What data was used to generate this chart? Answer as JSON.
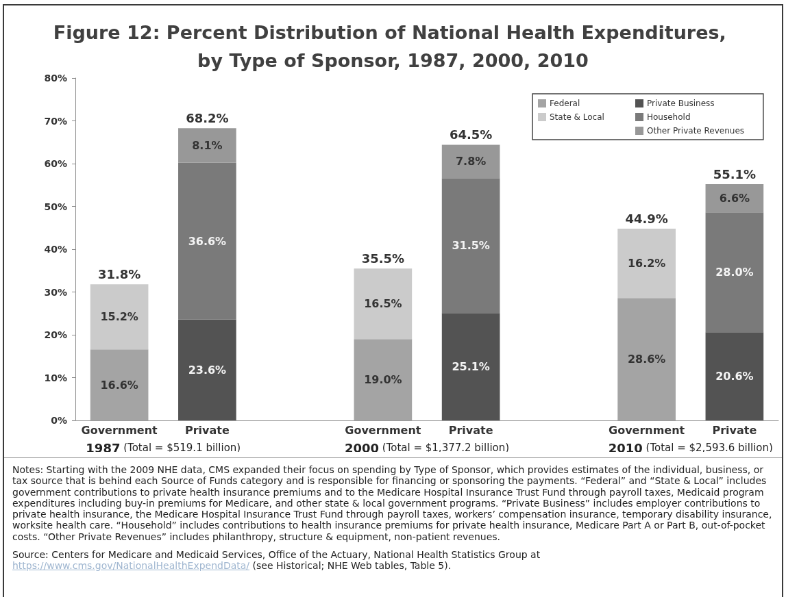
{
  "chart_data": {
    "type": "bar",
    "title": "Figure 12: Percent Distribution of National Health Expenditures, by Type of Sponsor, 1987, 2000, 2010",
    "categories": [
      "Government",
      "Private",
      null,
      "Government",
      "Private",
      null,
      "Government",
      "Private"
    ],
    "series": [
      {
        "name": "Federal",
        "color": "#a4a4a4",
        "values": [
          16.6,
          null,
          null,
          19.0,
          null,
          null,
          28.6,
          null
        ],
        "value_labels": [
          "16.6%",
          null,
          null,
          "19.0%",
          null,
          null,
          "28.6%",
          null
        ]
      },
      {
        "name": "State & Local",
        "color": "#cbcbcb",
        "values": [
          15.2,
          null,
          null,
          16.5,
          null,
          null,
          16.2,
          null
        ],
        "value_labels": [
          "15.2%",
          null,
          null,
          "16.5%",
          null,
          null,
          "16.2%",
          null
        ]
      },
      {
        "name": "Private Business",
        "color": "#535353",
        "values": [
          null,
          23.6,
          null,
          null,
          25.1,
          null,
          null,
          20.6
        ],
        "value_labels": [
          null,
          "23.6%",
          null,
          null,
          "25.1%",
          null,
          null,
          "20.6%"
        ]
      },
      {
        "name": "Household",
        "color": "#7a7a7a",
        "values": [
          null,
          36.6,
          null,
          null,
          31.5,
          null,
          null,
          28.0
        ],
        "value_labels": [
          null,
          "36.6%",
          null,
          null,
          "31.5%",
          null,
          null,
          "28.0%"
        ]
      },
      {
        "name": "Other Private Revenues",
        "color": "#989898",
        "values": [
          null,
          8.1,
          null,
          null,
          7.8,
          null,
          null,
          6.6
        ],
        "value_labels": [
          null,
          "8.1%",
          null,
          null,
          "7.8%",
          null,
          null,
          "6.6%"
        ]
      }
    ],
    "stacked": true,
    "totals": [
      "31.8%",
      "68.2%",
      null,
      "35.5%",
      "64.5%",
      null,
      "44.9%",
      "55.1%"
    ],
    "ylim": [
      0,
      80
    ],
    "yticks": [
      {
        "value": 0,
        "label": "0%"
      },
      {
        "value": 10,
        "label": "10%"
      },
      {
        "value": 20,
        "label": "20%"
      },
      {
        "value": 30,
        "label": "30%"
      },
      {
        "value": 40,
        "label": "40%"
      },
      {
        "value": 50,
        "label": "50%"
      },
      {
        "value": 60,
        "label": "60%"
      },
      {
        "value": 70,
        "label": "70%"
      },
      {
        "value": 80,
        "label": "80%"
      }
    ],
    "legend": "top right",
    "annotations": [
      "1987 (Total = $519.1 billion)",
      "2000 (Total = $1,377.2 billion)",
      "2010 (Total = $2,593.6 billion)",
      "Notes: Starting with the 2009 NHE data, CMS expanded their focus on spending by Type of Sponsor, which provides estimates of the individual, business, or tax source that is behind each Source of Funds category and is responsible for financing or sponsoring the payments. “Federal” and “State & Local” includes government contributions to private health insurance premiums and to the Medicare Hospital Insurance Trust Fund through payroll taxes, Medicaid program expenditures including buy-in premiums for Medicare, and other state & local government programs. “Private Business” includes employer contributions to private health insurance, the Medicare Hospital Insurance Trust Fund through payroll taxes, workers’ compensation insurance, temporary disability insurance, worksite health care. “Household” includes contributions to health insurance premiums for private health insurance, Medicare Part A or Part B, out-of-pocket costs. “Other Private Revenues” includes philanthropy, structure & equipment, non-patient revenues.",
      "Source: Centers for Medicare and Medicaid Services, Office of the Actuary, National Health Statistics Group at https://www.cms.gov/NationalHealthExpendData/ (see Historical; NHE Web tables, Table 5)."
    ]
  }
}
